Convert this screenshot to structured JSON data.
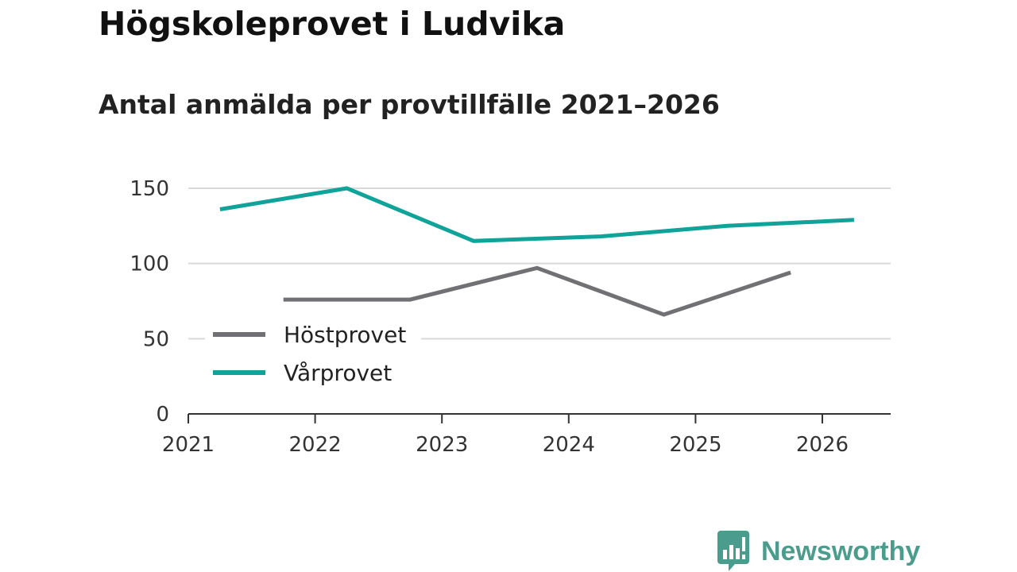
{
  "header": {
    "title": "Högskoleprovet i Ludvika",
    "subtitle": "Antal anmälda per provtillfälle 2021–2026"
  },
  "chart_data": {
    "type": "line",
    "title": "Högskoleprovet i Ludvika",
    "subtitle": "Antal anmälda per provtillfälle 2021–2026",
    "xlabel": "",
    "ylabel": "",
    "xlim": [
      2021,
      2026.55
    ],
    "ylim": [
      0,
      150
    ],
    "yticks": [
      0,
      50,
      100,
      150
    ],
    "xticks": [
      2021,
      2022,
      2023,
      2024,
      2025,
      2026
    ],
    "grid": true,
    "legend_position": "lower-left",
    "series": [
      {
        "name": "Höstprovet",
        "color": "#707075",
        "x": [
          2021.75,
          2022.75,
          2023.75,
          2024.75,
          2025.75
        ],
        "values": [
          76,
          76,
          97,
          66,
          94
        ]
      },
      {
        "name": "Vårprovet",
        "color": "#0fa39a",
        "x": [
          2021.25,
          2022.25,
          2023.25,
          2024.25,
          2025.25,
          2026.25
        ],
        "values": [
          136,
          150,
          115,
          118,
          125,
          129
        ]
      }
    ]
  },
  "branding": {
    "name": "Newsworthy",
    "logo_icon": "bar-chart-bubble-icon",
    "color": "#4a9c8c"
  }
}
